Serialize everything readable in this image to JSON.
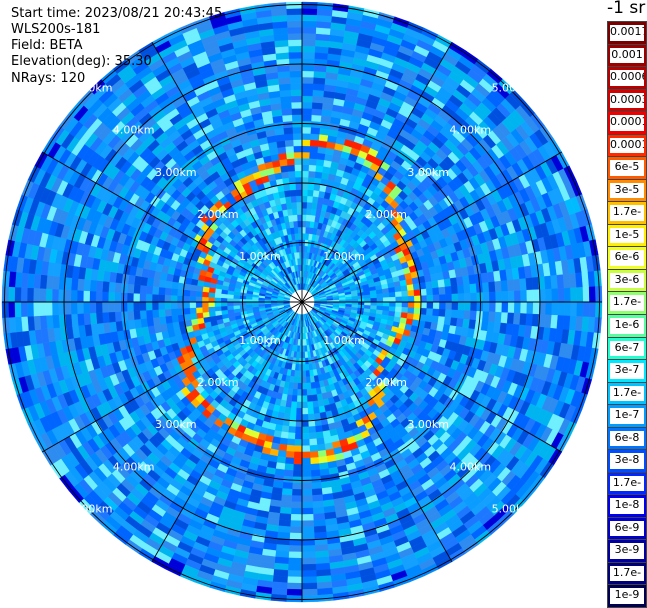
{
  "header": {
    "start_time": "Start time: 2023/08/21 20:43:45",
    "instrument": "WLS200s-181",
    "field": "Field: BETA",
    "elevation": "Elevation(deg): 35.30",
    "nrays": "NRays: 120"
  },
  "colorbar": {
    "title": "-1 sr",
    "labels": [
      "0.0017",
      "0.001",
      "0.0006",
      "0.0003",
      "0.00017",
      "0.0001",
      "6e-5",
      "3e-5",
      "1.7e-5",
      "1e-5",
      "6e-6",
      "3e-6",
      "1.7e-6",
      "1e-6",
      "6e-7",
      "3e-7",
      "1.7e-7",
      "1e-7",
      "6e-8",
      "3e-8",
      "1.7e-8",
      "1e-8",
      "6e-9",
      "3e-9",
      "1.7e-9",
      "1e-9"
    ],
    "colors": [
      "#7a0000",
      "#9a0000",
      "#b80000",
      "#d40000",
      "#ee0000",
      "#ff2a00",
      "#ff5a00",
      "#ff8c00",
      "#ffc000",
      "#ffee00",
      "#f0ff20",
      "#c8ff40",
      "#90ff70",
      "#55ffa0",
      "#20ffd0",
      "#00e8ff",
      "#00c4ff",
      "#009cff",
      "#0074ff",
      "#004cff",
      "#0028ff",
      "#0000f0",
      "#0000c8",
      "#0000a0",
      "#000078",
      "#000050"
    ]
  },
  "ppi": {
    "range_rings_km": [
      1,
      2,
      3,
      4,
      5
    ],
    "ring_labels": [
      "1.00km",
      "2.00km",
      "3.00km",
      "4.00km",
      "5.00km"
    ],
    "spoke_angles_deg": [
      0,
      30,
      60,
      90,
      120,
      150,
      180,
      210,
      240,
      270,
      300,
      330
    ],
    "nrays": 120,
    "max_range_km": 5.0
  }
}
